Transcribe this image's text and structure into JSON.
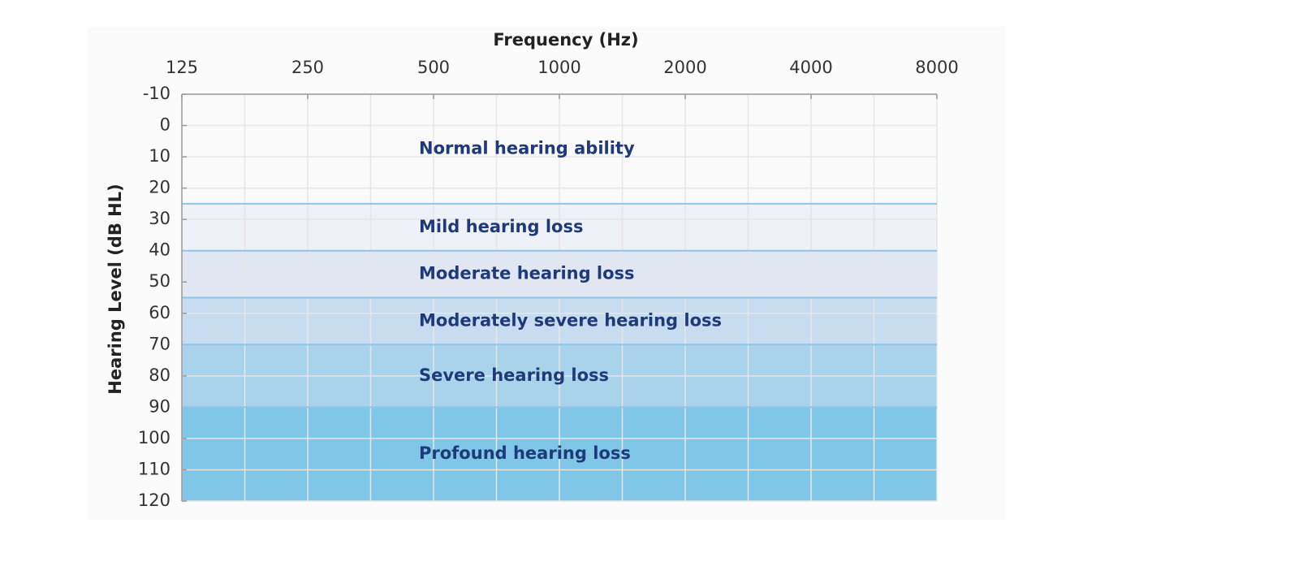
{
  "chart_data": {
    "type": "band",
    "x_label": "Frequency (Hz)",
    "y_label": "Hearing Level (dB HL)",
    "xscale": "log",
    "xlim": [
      125,
      8000
    ],
    "xticks": [
      125,
      250,
      500,
      1000,
      2000,
      4000,
      8000
    ],
    "ylim": [
      -10,
      120
    ],
    "yticks": [
      -10,
      0,
      10,
      20,
      30,
      40,
      50,
      60,
      70,
      80,
      90,
      100,
      110,
      120
    ],
    "y_inverted": true,
    "grid": true,
    "bands": [
      {
        "label": "Normal hearing ability",
        "from": -10,
        "to": 25,
        "color": "#fafafa"
      },
      {
        "label": "Mild hearing loss",
        "from": 25,
        "to": 40,
        "color": "#eff1f8"
      },
      {
        "label": "Moderate hearing loss",
        "from": 40,
        "to": 55,
        "color": "#e0e7f2"
      },
      {
        "label": "Moderately severe hearing loss",
        "from": 55,
        "to": 70,
        "color": "#c7dcee"
      },
      {
        "label": "Severe hearing loss",
        "from": 70,
        "to": 90,
        "color": "#a9d3ea"
      },
      {
        "label": "Profound hearing loss",
        "from": 90,
        "to": 120,
        "color": "#80c6e6"
      }
    ]
  }
}
